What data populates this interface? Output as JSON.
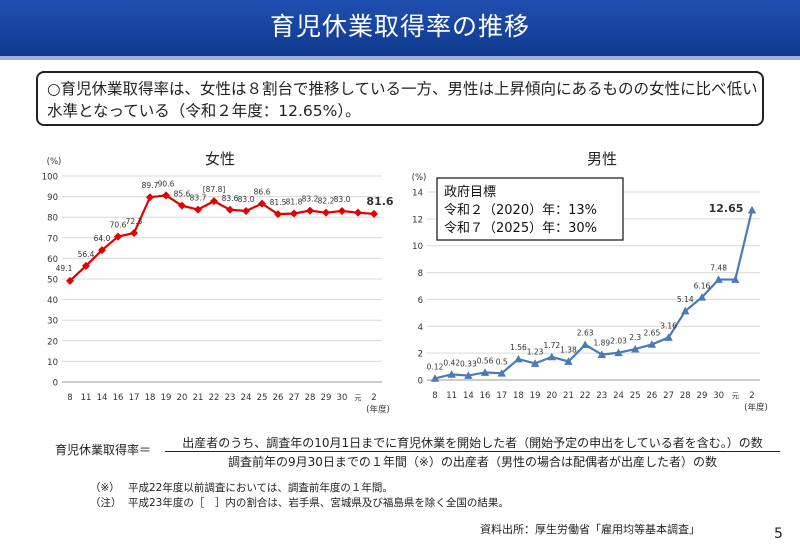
{
  "header": {
    "title": "育児休業取得率の推移"
  },
  "summary": {
    "text": "○育児休業取得率は、女性は８割台で推移している一方、男性は上昇傾向にあるものの女性に比べ低い水準となっている（令和２年度：12.65%）。"
  },
  "chart_data": [
    {
      "type": "line",
      "title": "女性",
      "ylabel": "(%)",
      "xlabel": "(年度)",
      "ylim": [
        0,
        100
      ],
      "yticks": [
        "0",
        "10",
        "20",
        "30",
        "40",
        "50",
        "60",
        "70",
        "80",
        "90",
        "100"
      ],
      "categories": [
        "8",
        "11",
        "14",
        "16",
        "17",
        "18",
        "19",
        "20",
        "21",
        "22",
        "23",
        "24",
        "25",
        "26",
        "27",
        "28",
        "29",
        "30",
        "元",
        "2"
      ],
      "values": [
        49.1,
        56.4,
        64.0,
        70.6,
        72.3,
        89.7,
        90.6,
        85.6,
        83.7,
        87.8,
        83.6,
        83.0,
        86.6,
        81.5,
        81.8,
        83.2,
        82.2,
        83.0,
        82.2,
        81.6
      ],
      "labels": [
        "49.1",
        "56.4",
        "64.0",
        "70.6",
        "72.3",
        "89.7",
        "90.6",
        "85.6",
        "83.7",
        "87.8",
        "83.6",
        "83.0",
        "86.6",
        "81.5",
        "81.8",
        "83.2",
        "82.2",
        "83.0",
        "",
        "81.6"
      ],
      "bracketed": [
        "",
        "",
        "",
        "",
        "",
        "",
        "",
        "",
        "",
        "[87.8]",
        "",
        "",
        "",
        "",
        "",
        "",
        "",
        "",
        "",
        ""
      ],
      "color": "#e00000"
    },
    {
      "type": "line",
      "title": "男性",
      "ylabel": "(%)",
      "xlabel": "(年度)",
      "ylim": [
        0,
        14
      ],
      "yticks": [
        "0",
        "2",
        "4",
        "6",
        "8",
        "10",
        "12",
        "14"
      ],
      "categories": [
        "8",
        "11",
        "14",
        "16",
        "17",
        "18",
        "19",
        "20",
        "21",
        "22",
        "23",
        "24",
        "25",
        "26",
        "27",
        "28",
        "29",
        "30",
        "元",
        "2"
      ],
      "values": [
        0.12,
        0.42,
        0.33,
        0.56,
        0.5,
        1.56,
        1.23,
        1.72,
        1.38,
        2.63,
        1.89,
        2.03,
        2.3,
        2.65,
        3.16,
        5.14,
        6.16,
        7.48,
        7.48,
        12.65
      ],
      "labels": [
        "0.12",
        "0.42",
        "0.33",
        "0.56",
        "0.5",
        "1.56",
        "1.23",
        "1.72",
        "1.38",
        "2.63",
        "1.89",
        "2.03",
        "2.3",
        "2.65",
        "3.16",
        "5.14",
        "6.16",
        "7.48",
        "",
        "12.65"
      ],
      "color": "#4a7ab8",
      "annotation": {
        "title": "政府目標",
        "line1": "令和２（2020）年：13%",
        "line2": "令和７（2025）年：30%"
      }
    }
  ],
  "formula": {
    "label": "育児休業取得率＝",
    "numerator": "出産者のうち、調査年の10月1日までに育児休業を開始した者（開始予定の申出をしている者を含む。）の数",
    "denominator": "調査前年の9月30日までの１年間（※）の出産者（男性の場合は配偶者が出産した者）の数"
  },
  "notes": [
    {
      "mark": "（※）",
      "text": "平成22年度以前調査においては、調査前年度の１年間。"
    },
    {
      "mark": "（注）",
      "text": "平成23年度の［　］内の割合は、岩手県、宮城県及び福島県を除く全国の結果。"
    }
  ],
  "source": "資料出所：厚生労働省「雇用均等基本調査」",
  "page_number": "5"
}
